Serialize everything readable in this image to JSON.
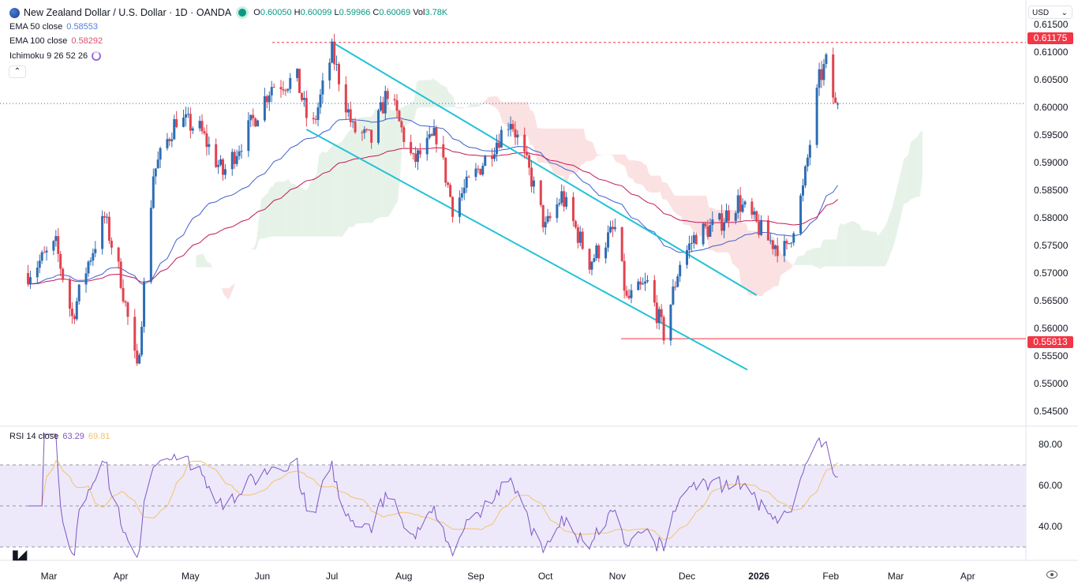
{
  "header": {
    "symbol_title": "New Zealand Dollar / U.S. Dollar · 1D · OANDA",
    "ohlc": {
      "o_label": "O",
      "o": "0.60050",
      "h_label": "H",
      "h": "0.60099",
      "l_label": "L",
      "l": "0.59966",
      "c_label": "C",
      "c": "0.60069",
      "vol_label": "Vol",
      "vol": "3.78K"
    },
    "ema50": {
      "label": "EMA 50 close",
      "value": "0.58553"
    },
    "ema100": {
      "label": "EMA 100 close",
      "value": "0.58292"
    },
    "ichimoku": {
      "label": "Ichimoku 9 26 52 26"
    },
    "collapse_icon": "chevron-up-icon"
  },
  "currency_selector": "USD",
  "price_axis": [
    "0.61500",
    "0.61000",
    "0.60500",
    "0.60000",
    "0.59500",
    "0.59000",
    "0.58500",
    "0.58000",
    "0.57500",
    "0.57000",
    "0.56500",
    "0.56000",
    "0.55500",
    "0.55000",
    "0.54500"
  ],
  "price_tags": {
    "resistance": "0.61175",
    "support": "0.55813"
  },
  "rsi": {
    "label": "RSI 14 close",
    "value": "63.29",
    "ma_value": "69.81",
    "axis": [
      "80.00",
      "60.00",
      "40.00"
    ]
  },
  "time_axis": [
    "Mar",
    "Apr",
    "May",
    "Jun",
    "Jul",
    "Aug",
    "Sep",
    "Oct",
    "Nov",
    "Dec",
    "2026",
    "Feb",
    "Mar",
    "Apr"
  ],
  "colors": {
    "bull": "#2e6db4",
    "bear": "#e0434f",
    "ema50": "#3f5fd0",
    "ema100": "#c2185b",
    "channel": "#22c3d6",
    "rsi": "#7e57c2",
    "rsi_ma": "#f5c26b",
    "cloud_bull": "#e6f2e8",
    "cloud_bear": "#fbe1e1"
  },
  "chart_data": {
    "type": "candlestick",
    "symbol": "NZDUSD",
    "interval": "1D",
    "ylim": [
      0.545,
      0.615
    ],
    "rsi_ylim": [
      25,
      85
    ],
    "rsi_levels": [
      30,
      50,
      70
    ],
    "horizontal_levels": [
      0.61175,
      0.55813
    ],
    "last_price": 0.60069,
    "approx_close": [
      [
        "2025-02-20",
        0.57
      ],
      [
        "2025-03-04",
        0.575
      ],
      [
        "2025-03-11",
        0.562
      ],
      [
        "2025-03-18",
        0.572
      ],
      [
        "2025-03-25",
        0.58
      ],
      [
        "2025-04-01",
        0.569
      ],
      [
        "2025-04-08",
        0.552
      ],
      [
        "2025-04-15",
        0.588
      ],
      [
        "2025-04-25",
        0.598
      ],
      [
        "2025-05-05",
        0.596
      ],
      [
        "2025-05-15",
        0.588
      ],
      [
        "2025-05-26",
        0.596
      ],
      [
        "2025-06-05",
        0.604
      ],
      [
        "2025-06-16",
        0.605
      ],
      [
        "2025-06-22",
        0.595
      ],
      [
        "2025-07-01",
        0.61
      ],
      [
        "2025-07-10",
        0.596
      ],
      [
        "2025-07-18",
        0.594
      ],
      [
        "2025-07-25",
        0.603
      ],
      [
        "2025-08-05",
        0.59
      ],
      [
        "2025-08-15",
        0.595
      ],
      [
        "2025-08-22",
        0.582
      ],
      [
        "2025-09-01",
        0.588
      ],
      [
        "2025-09-16",
        0.598
      ],
      [
        "2025-09-25",
        0.587
      ],
      [
        "2025-10-01",
        0.578
      ],
      [
        "2025-10-08",
        0.584
      ],
      [
        "2025-10-20",
        0.572
      ],
      [
        "2025-10-31",
        0.578
      ],
      [
        "2025-11-05",
        0.565
      ],
      [
        "2025-11-14",
        0.568
      ],
      [
        "2025-11-21",
        0.559
      ],
      [
        "2025-11-28",
        0.572
      ],
      [
        "2025-12-05",
        0.577
      ],
      [
        "2025-12-15",
        0.579
      ],
      [
        "2025-12-23",
        0.583
      ],
      [
        "2026-01-05",
        0.576
      ],
      [
        "2026-01-13",
        0.574
      ],
      [
        "2026-01-20",
        0.585
      ],
      [
        "2026-01-27",
        0.605
      ],
      [
        "2026-01-30",
        0.608
      ],
      [
        "2026-02-03",
        0.6
      ],
      [
        "2026-02-04",
        0.6007
      ]
    ],
    "trendlines": [
      {
        "from": [
          "2025-07-01",
          0.6118
        ],
        "to": [
          "2025-12-31",
          0.566
        ]
      },
      {
        "from": [
          "2025-06-20",
          0.596
        ],
        "to": [
          "2025-12-27",
          0.5525
        ]
      }
    ]
  }
}
